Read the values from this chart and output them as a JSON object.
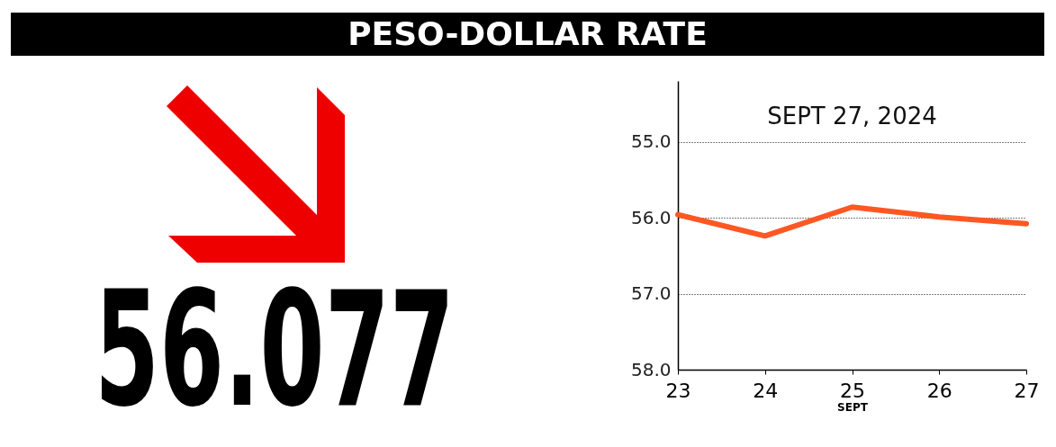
{
  "chart_data": {
    "type": "line",
    "title": "PESO-DOLLAR RATE",
    "subtitle": "SEPT 27, 2024",
    "xlabel": "SEPT",
    "categories": [
      "23",
      "24",
      "25",
      "26",
      "27"
    ],
    "series": [
      {
        "color": "#ff5722",
        "values": [
          55.96,
          56.24,
          55.86,
          55.99,
          56.08
        ]
      }
    ],
    "ylim": [
      58.0,
      54.2
    ],
    "yticks": [
      {
        "value": 55,
        "label": "55.0"
      },
      {
        "value": 56,
        "label": "56.0"
      },
      {
        "value": 57,
        "label": "57.0"
      },
      {
        "value": 58,
        "label": "58.0"
      }
    ],
    "grid": "y",
    "line_style": "solid",
    "annotations": [
      "56.077"
    ]
  }
}
